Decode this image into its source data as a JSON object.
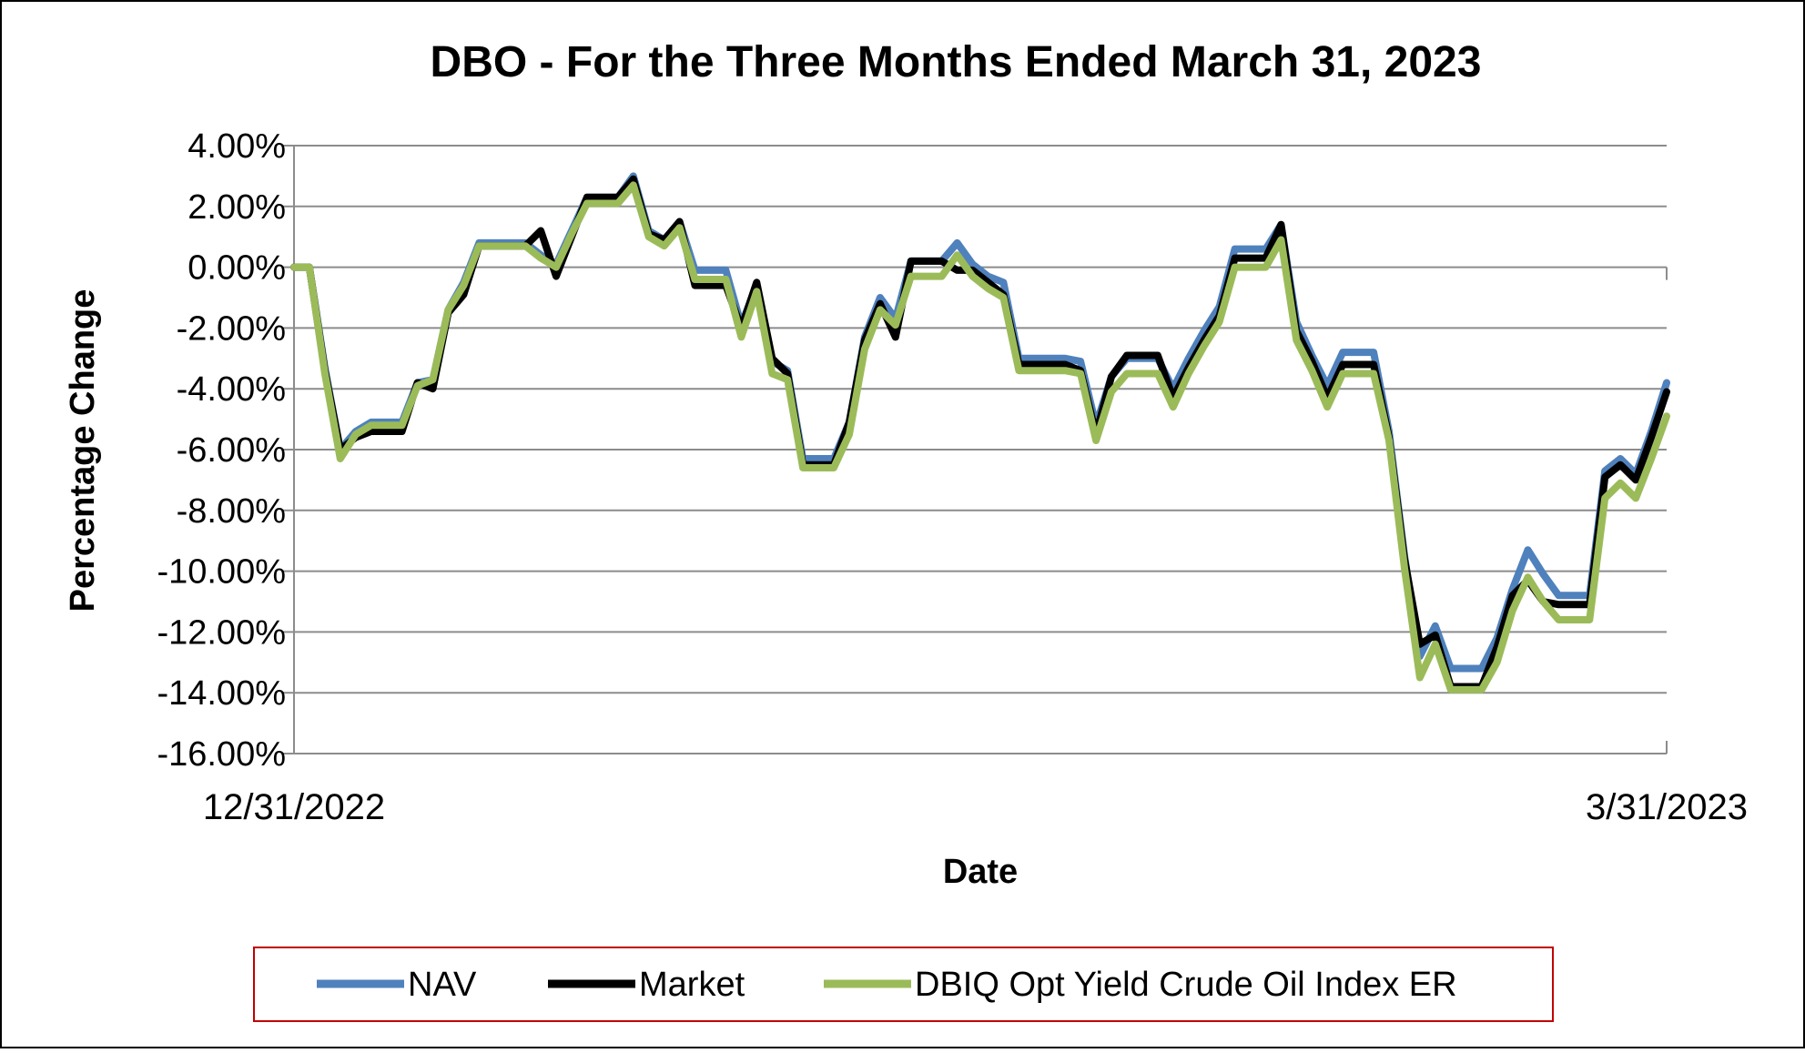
{
  "chart_data": {
    "type": "line",
    "title": "DBO - For the Three Months Ended March 31, 2023",
    "xlabel": "Date",
    "ylabel": "Percentage Change",
    "ylim": [
      -16,
      4
    ],
    "y_ticks": [
      4,
      2,
      0,
      -2,
      -4,
      -6,
      -8,
      -10,
      -12,
      -14,
      -16
    ],
    "y_tick_labels": [
      "4.00%",
      "2.00%",
      "0.00%",
      "-2.00%",
      "-4.00%",
      "-6.00%",
      "-8.00%",
      "-10.00%",
      "-12.00%",
      "-14.00%",
      "-16.00%"
    ],
    "x_tick_labels": [
      "12/31/2022",
      "3/31/2023"
    ],
    "grid": true,
    "legend_position": "bottom",
    "series": [
      {
        "name": "NAV",
        "color": "#4F81BD",
        "values": [
          0,
          0,
          -3.3,
          -6.0,
          -5.4,
          -5.1,
          -5.1,
          -5.1,
          -3.8,
          -3.7,
          -1.4,
          -0.5,
          0.8,
          0.8,
          0.8,
          0.8,
          0.4,
          0.1,
          1.2,
          2.3,
          2.3,
          2.3,
          3.0,
          1.2,
          0.9,
          1.5,
          -0.1,
          -0.1,
          -0.1,
          -1.9,
          -0.6,
          -3.1,
          -3.4,
          -6.3,
          -6.3,
          -6.3,
          -5.1,
          -2.3,
          -1.0,
          -1.7,
          0.2,
          0.2,
          0.2,
          0.8,
          0.1,
          -0.3,
          -0.5,
          -3.0,
          -3.0,
          -3.0,
          -3.0,
          -3.1,
          -5.2,
          -3.6,
          -3.0,
          -3.0,
          -3.0,
          -4.0,
          -3.0,
          -2.1,
          -1.3,
          0.6,
          0.6,
          0.6,
          1.4,
          -1.8,
          -2.9,
          -3.9,
          -2.8,
          -2.8,
          -2.8,
          -5.4,
          -9.5,
          -12.8,
          -11.8,
          -13.2,
          -13.2,
          -13.2,
          -12.2,
          -10.6,
          -9.3,
          -10.1,
          -10.8,
          -10.8,
          -10.8,
          -6.7,
          -6.3,
          -6.8,
          -5.4,
          -3.8
        ]
      },
      {
        "name": "Market",
        "color": "#000000",
        "values": [
          0,
          0,
          -3.4,
          -6.0,
          -5.6,
          -5.4,
          -5.4,
          -5.4,
          -3.8,
          -4.0,
          -1.5,
          -0.9,
          0.7,
          0.7,
          0.7,
          0.7,
          1.2,
          -0.3,
          1.0,
          2.3,
          2.3,
          2.3,
          2.9,
          1.1,
          0.9,
          1.5,
          -0.6,
          -0.6,
          -0.6,
          -2.0,
          -0.5,
          -3.0,
          -3.5,
          -6.5,
          -6.5,
          -6.5,
          -5.1,
          -2.4,
          -1.2,
          -2.3,
          0.2,
          0.2,
          0.2,
          -0.1,
          -0.1,
          -0.5,
          -0.9,
          -3.2,
          -3.2,
          -3.2,
          -3.2,
          -3.4,
          -5.5,
          -3.6,
          -2.9,
          -2.9,
          -2.9,
          -4.3,
          -3.3,
          -2.4,
          -1.6,
          0.3,
          0.3,
          0.3,
          1.4,
          -2.1,
          -3.1,
          -4.3,
          -3.2,
          -3.2,
          -3.2,
          -5.6,
          -9.6,
          -12.4,
          -12.1,
          -13.8,
          -13.8,
          -13.8,
          -12.5,
          -10.8,
          -10.3,
          -11.0,
          -11.1,
          -11.1,
          -11.1,
          -6.9,
          -6.5,
          -7.0,
          -5.6,
          -4.1
        ]
      },
      {
        "name": "DBIQ Opt Yield Crude Oil Index ER",
        "color": "#9BBB59",
        "values": [
          0,
          0,
          -3.5,
          -6.3,
          -5.5,
          -5.2,
          -5.2,
          -5.2,
          -3.9,
          -3.7,
          -1.4,
          -0.6,
          0.7,
          0.7,
          0.7,
          0.7,
          0.3,
          0.0,
          1.1,
          2.1,
          2.1,
          2.1,
          2.7,
          1.0,
          0.7,
          1.3,
          -0.4,
          -0.4,
          -0.4,
          -2.3,
          -0.8,
          -3.5,
          -3.7,
          -6.6,
          -6.6,
          -6.6,
          -5.5,
          -2.7,
          -1.4,
          -1.9,
          -0.3,
          -0.3,
          -0.3,
          0.4,
          -0.3,
          -0.7,
          -1.0,
          -3.4,
          -3.4,
          -3.4,
          -3.4,
          -3.5,
          -5.7,
          -4.1,
          -3.5,
          -3.5,
          -3.5,
          -4.6,
          -3.5,
          -2.6,
          -1.8,
          0.0,
          0.0,
          0.0,
          0.9,
          -2.4,
          -3.4,
          -4.6,
          -3.5,
          -3.5,
          -3.5,
          -5.7,
          -9.9,
          -13.5,
          -12.4,
          -13.9,
          -13.9,
          -13.9,
          -13.0,
          -11.3,
          -10.2,
          -11.0,
          -11.6,
          -11.6,
          -11.6,
          -7.6,
          -7.1,
          -7.6,
          -6.3,
          -4.9
        ]
      }
    ]
  }
}
